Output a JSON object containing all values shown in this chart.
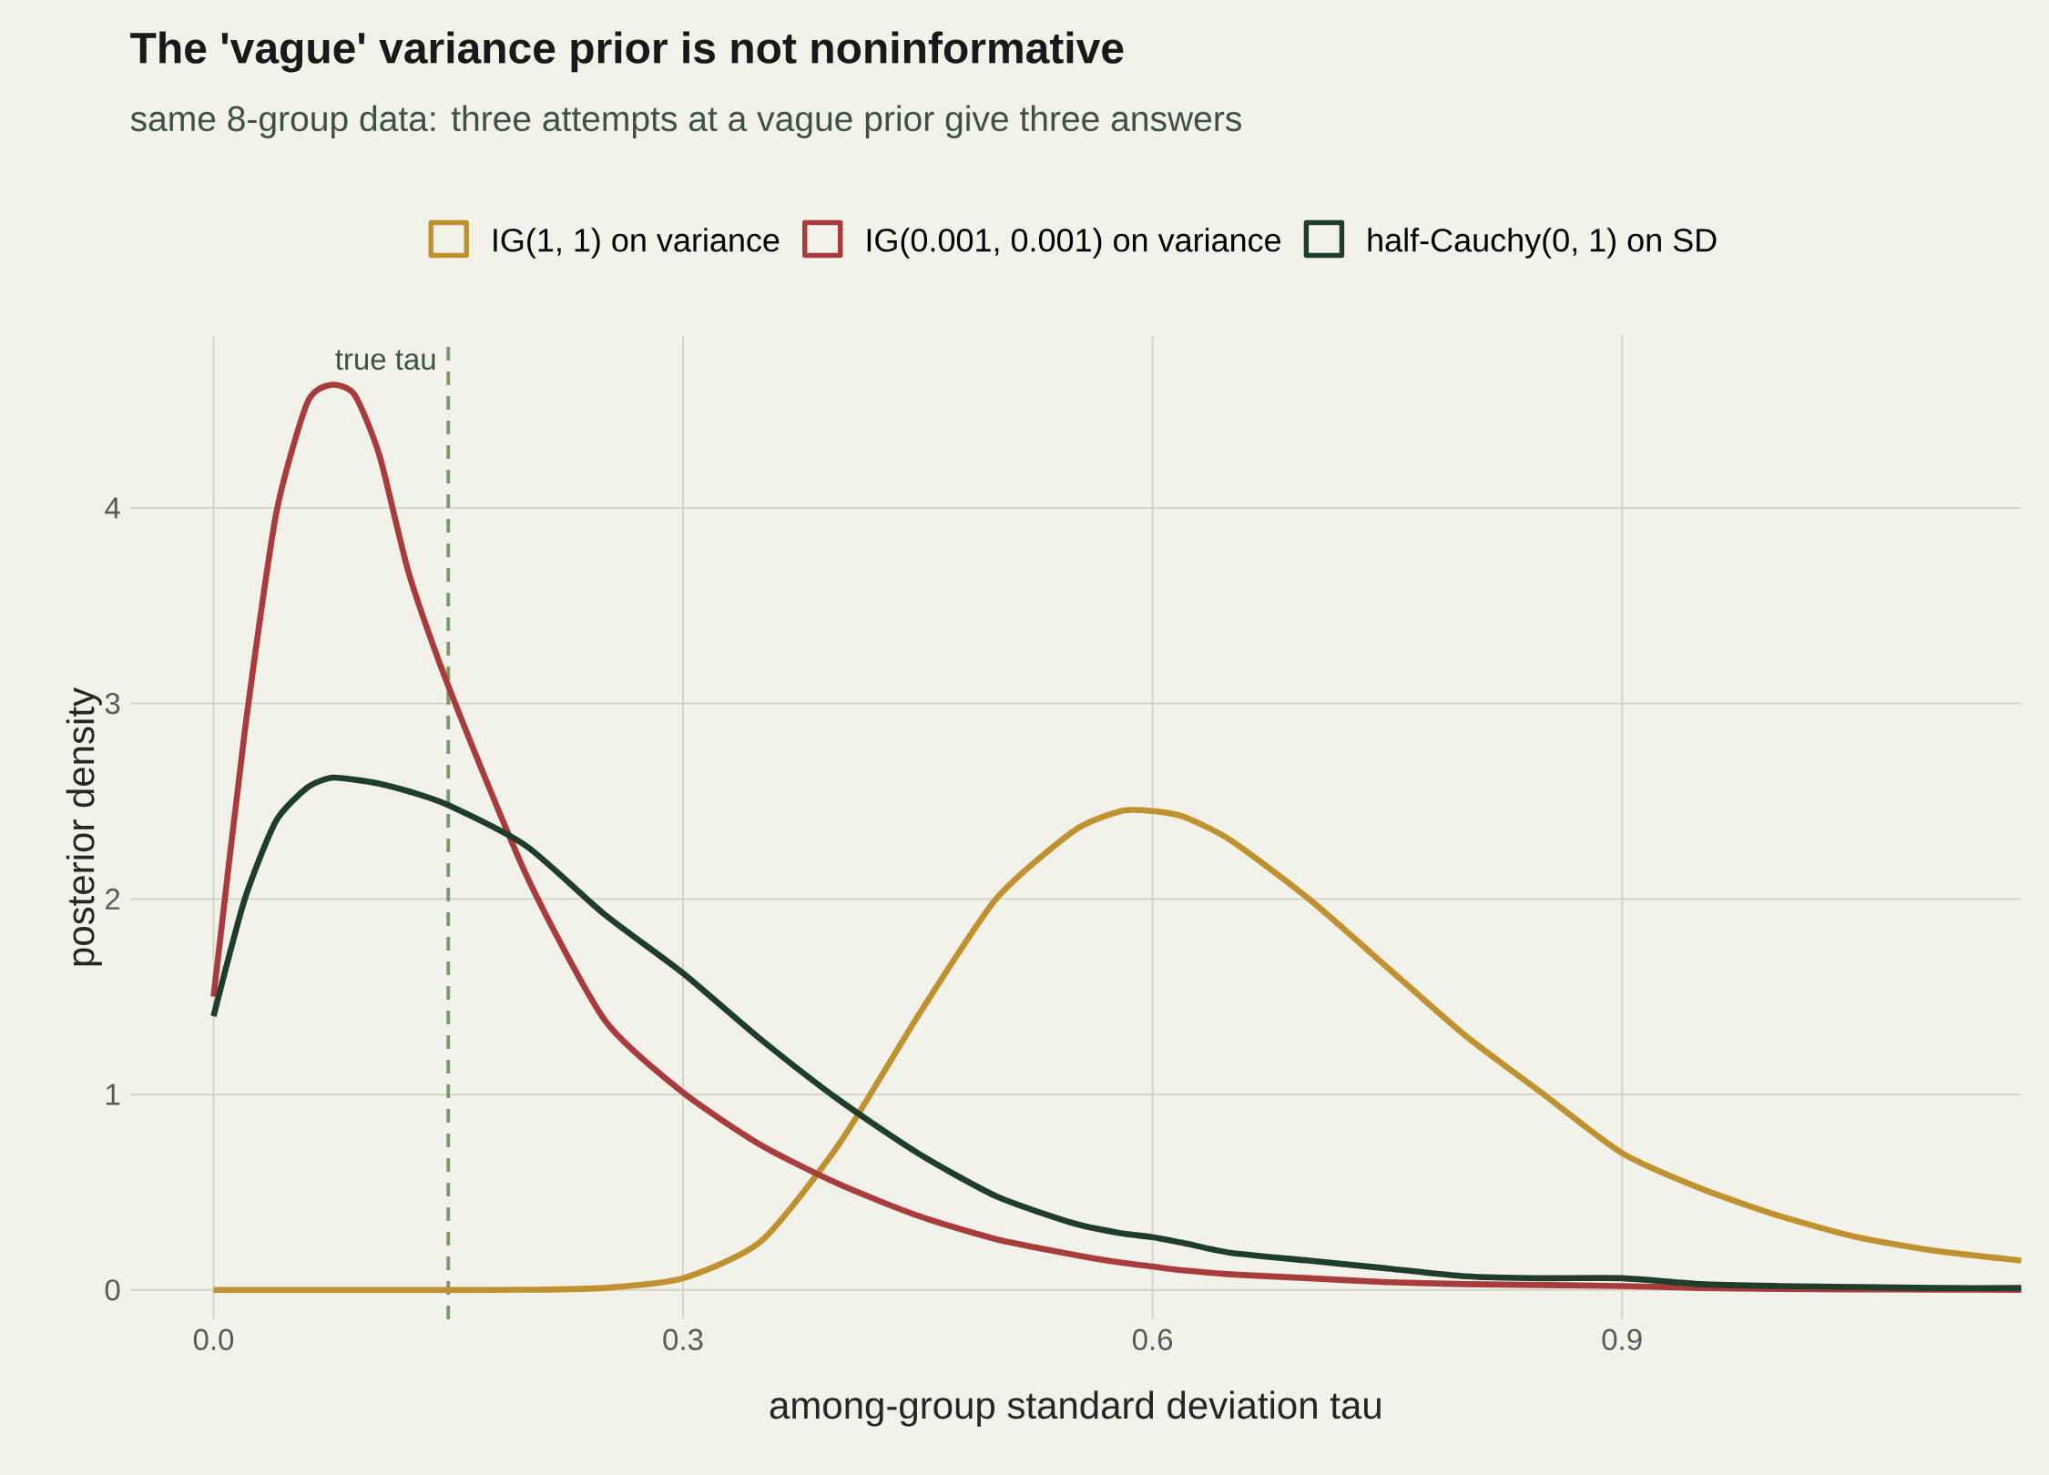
{
  "chart_data": {
    "type": "line",
    "title": "The 'vague' variance prior is not noninformative",
    "subtitle": "same 8-group data: three attempts at a vague prior give three answers",
    "xlabel": "among-group standard deviation tau",
    "ylabel": "posterior density",
    "xlim": [
      -0.053,
      1.155
    ],
    "ylim": [
      -0.15,
      4.88
    ],
    "xticks": [
      {
        "value": 0,
        "label": "0.0"
      },
      0.3,
      0.6,
      0.9
    ],
    "yticks": [
      0,
      1,
      2,
      3,
      4
    ],
    "grid": true,
    "legend": "top",
    "line_style": "solid",
    "marker": "none",
    "x": [
      0,
      0.02,
      0.04,
      0.06,
      0.075,
      0.09,
      0.106,
      0.125,
      0.15,
      0.2,
      0.25,
      0.3,
      0.35,
      0.4,
      0.45,
      0.5,
      0.55,
      0.58,
      0.6,
      0.62,
      0.65,
      0.7,
      0.75,
      0.8,
      0.85,
      0.9,
      0.95,
      1.0,
      1.05,
      1.1,
      1.155
    ],
    "series": [
      {
        "name": "IG(1, 1) on variance",
        "color": "#c0922f",
        "values": [
          0,
          0,
          0,
          0,
          0,
          0,
          0,
          0,
          0,
          0.001,
          0.01,
          0.06,
          0.25,
          0.75,
          1.4,
          2.0,
          2.35,
          2.45,
          2.45,
          2.42,
          2.3,
          2.0,
          1.65,
          1.3,
          1.0,
          0.7,
          0.52,
          0.38,
          0.27,
          0.2,
          0.15
        ]
      },
      {
        "name": "IG(0.001, 0.001) on variance",
        "color": "#a83c3c",
        "values": [
          1.5,
          2.86,
          3.97,
          4.54,
          4.63,
          4.58,
          4.27,
          3.66,
          3.09,
          2.12,
          1.38,
          1.01,
          0.74,
          0.54,
          0.38,
          0.26,
          0.18,
          0.14,
          0.12,
          0.1,
          0.08,
          0.06,
          0.04,
          0.03,
          0.025,
          0.02,
          0.01,
          0.005,
          0.003,
          0.002,
          0
        ]
      },
      {
        "name": "half-Cauchy(0, 1) on SD",
        "color": "#1e3d2a",
        "values": [
          1.4,
          2.0,
          2.4,
          2.57,
          2.62,
          2.61,
          2.59,
          2.55,
          2.48,
          2.27,
          1.92,
          1.62,
          1.28,
          0.97,
          0.7,
          0.48,
          0.34,
          0.29,
          0.27,
          0.24,
          0.19,
          0.15,
          0.11,
          0.07,
          0.06,
          0.06,
          0.03,
          0.02,
          0.015,
          0.01,
          0.01
        ]
      }
    ],
    "ref_lines": [
      {
        "axis": "x",
        "value": 0.15,
        "label": "true tau",
        "color": "#7a9a6a",
        "line_style": "dashed"
      }
    ]
  }
}
